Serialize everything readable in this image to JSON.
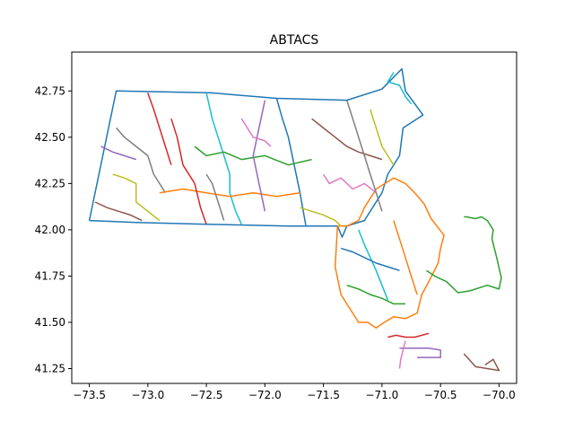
{
  "chart_data": {
    "type": "line",
    "title": "ABTACS",
    "xlabel": "",
    "ylabel": "",
    "xlim": [
      -73.65,
      -69.85
    ],
    "ylim": [
      41.17,
      42.96
    ],
    "grid": false,
    "legend": "none",
    "xticks": [
      -73.5,
      -73.0,
      -72.5,
      -72.0,
      -71.5,
      -71.0,
      -70.5,
      -70.0
    ],
    "xtick_labels": [
      "−73.5",
      "−73.0",
      "−72.5",
      "−72.0",
      "−71.5",
      "−71.0",
      "−70.5",
      "−70.0"
    ],
    "yticks": [
      41.25,
      41.5,
      41.75,
      42.0,
      42.25,
      42.5,
      42.75
    ],
    "ytick_labels": [
      "41.25",
      "41.50",
      "41.75",
      "42.00",
      "42.25",
      "42.50",
      "42.75"
    ],
    "colors": [
      "#1f77b4",
      "#ff7f0e",
      "#2ca02c",
      "#d62728",
      "#9467bd",
      "#8c564b",
      "#e377c2",
      "#7f7f7f",
      "#bcbd22",
      "#17becf"
    ],
    "series": [
      {
        "x": [
          -73.5,
          -73.27,
          -72.46,
          -71.9,
          -71.3,
          -71.0,
          -70.83,
          -70.8,
          -70.65,
          -70.82,
          -70.85,
          -70.95,
          -71.0,
          -71.15,
          -71.3,
          -71.34,
          -71.38,
          -71.8,
          -72.5,
          -73.1,
          -73.5,
          -73.5
        ],
        "y": [
          42.05,
          42.75,
          42.74,
          42.71,
          42.7,
          42.76,
          42.87,
          42.75,
          42.62,
          42.55,
          42.4,
          42.3,
          42.2,
          42.05,
          42.02,
          41.96,
          42.02,
          42.02,
          42.03,
          42.04,
          42.05,
          42.05
        ]
      },
      {
        "x": [
          -71.38,
          -71.4,
          -71.35,
          -71.2,
          -71.12,
          -71.05,
          -70.98,
          -70.9,
          -70.8,
          -70.7,
          -70.66,
          -70.6,
          -70.52,
          -70.5,
          -70.47,
          -70.58,
          -70.64,
          -70.72,
          -70.8,
          -70.9,
          -71.05,
          -71.15,
          -71.2,
          -71.3,
          -71.38
        ],
        "y": [
          42.02,
          41.8,
          41.65,
          41.5,
          41.5,
          41.47,
          41.5,
          41.53,
          41.52,
          41.55,
          41.65,
          41.72,
          41.82,
          41.9,
          41.97,
          42.06,
          42.14,
          42.2,
          42.25,
          42.28,
          42.22,
          42.12,
          42.05,
          42.02,
          42.02
        ]
      },
      {
        "x": [
          -70.62,
          -70.55,
          -70.45,
          -70.35,
          -70.25,
          -70.1,
          -70.0,
          -69.98,
          -70.02,
          -70.06,
          -70.05,
          -70.1,
          -70.15,
          -70.2,
          -70.28,
          -70.3
        ],
        "y": [
          41.78,
          41.75,
          41.72,
          41.66,
          41.67,
          41.7,
          41.68,
          41.74,
          41.85,
          41.95,
          42.0,
          42.05,
          42.07,
          42.06,
          42.07,
          42.07
        ]
      },
      {
        "x": [
          -70.95,
          -70.88,
          -70.8,
          -70.72,
          -70.6
        ],
        "y": [
          41.42,
          41.43,
          41.42,
          41.42,
          41.44
        ]
      },
      {
        "x": [
          -70.85,
          -70.6,
          -70.5,
          -70.5,
          -70.7
        ],
        "y": [
          41.36,
          41.36,
          41.35,
          41.31,
          41.31
        ]
      },
      {
        "x": [
          -70.3,
          -70.2,
          -70.1,
          -70.0,
          -70.05,
          -70.12
        ],
        "y": [
          41.33,
          41.26,
          41.25,
          41.24,
          41.3,
          41.27
        ]
      },
      {
        "x": [
          -70.85,
          -70.84,
          -70.82,
          -70.8
        ],
        "y": [
          41.25,
          41.3,
          41.35,
          41.4
        ]
      },
      {
        "x": [
          -73.27,
          -73.2,
          -73.1,
          -73.0,
          -72.95,
          -72.9,
          -72.85
        ],
        "y": [
          42.55,
          42.5,
          42.45,
          42.4,
          42.3,
          42.25,
          42.2
        ]
      },
      {
        "x": [
          -73.3,
          -73.2,
          -73.1,
          -73.1,
          -73.0,
          -72.9
        ],
        "y": [
          42.3,
          42.28,
          42.25,
          42.15,
          42.1,
          42.05
        ]
      },
      {
        "x": [
          -72.5,
          -72.45,
          -72.4,
          -72.35,
          -72.3,
          -72.3,
          -72.25,
          -72.2
        ],
        "y": [
          42.74,
          42.6,
          42.5,
          42.4,
          42.3,
          42.2,
          42.1,
          42.03
        ]
      },
      {
        "x": [
          -71.9,
          -71.85,
          -71.8,
          -71.75,
          -71.7,
          -71.65
        ],
        "y": [
          42.71,
          42.6,
          42.5,
          42.35,
          42.2,
          42.02
        ]
      },
      {
        "x": [
          -72.9,
          -72.7,
          -72.5,
          -72.3,
          -72.1,
          -71.9,
          -71.7
        ],
        "y": [
          42.2,
          42.22,
          42.2,
          42.18,
          42.2,
          42.18,
          42.2
        ]
      },
      {
        "x": [
          -72.6,
          -72.5,
          -72.35,
          -72.2,
          -72.0,
          -71.8,
          -71.6
        ],
        "y": [
          42.45,
          42.4,
          42.42,
          42.38,
          42.4,
          42.35,
          42.38
        ]
      },
      {
        "x": [
          -72.8,
          -72.75,
          -72.7,
          -72.6,
          -72.55,
          -72.5
        ],
        "y": [
          42.6,
          42.5,
          42.35,
          42.25,
          42.12,
          42.03
        ]
      },
      {
        "x": [
          -72.0,
          -72.05,
          -72.1,
          -72.05,
          -72.0
        ],
        "y": [
          42.7,
          42.55,
          42.4,
          42.25,
          42.1
        ]
      },
      {
        "x": [
          -71.6,
          -71.5,
          -71.4,
          -71.3,
          -71.2,
          -71.1,
          -71.0
        ],
        "y": [
          42.6,
          42.55,
          42.5,
          42.45,
          42.42,
          42.4,
          42.38
        ]
      },
      {
        "x": [
          -71.5,
          -71.45,
          -71.35,
          -71.25,
          -71.15,
          -71.05
        ],
        "y": [
          42.3,
          42.25,
          42.28,
          42.22,
          42.25,
          42.2
        ]
      },
      {
        "x": [
          -71.3,
          -71.25,
          -71.2,
          -71.15,
          -71.1,
          -71.05,
          -71.0
        ],
        "y": [
          42.7,
          42.6,
          42.5,
          42.4,
          42.3,
          42.2,
          42.1
        ]
      },
      {
        "x": [
          -71.1,
          -71.05,
          -71.0,
          -70.95,
          -70.9
        ],
        "y": [
          42.65,
          42.55,
          42.45,
          42.4,
          42.35
        ]
      },
      {
        "x": [
          -71.2,
          -71.15,
          -71.1,
          -71.05,
          -71.0,
          -70.95
        ],
        "y": [
          42.0,
          41.92,
          41.85,
          41.78,
          41.7,
          41.62
        ]
      },
      {
        "x": [
          -71.35,
          -71.25,
          -71.15,
          -71.05,
          -70.95,
          -70.85
        ],
        "y": [
          41.9,
          41.88,
          41.85,
          41.82,
          41.8,
          41.78
        ]
      },
      {
        "x": [
          -70.9,
          -70.85,
          -70.8,
          -70.75,
          -70.7
        ],
        "y": [
          42.05,
          41.95,
          41.85,
          41.75,
          41.65
        ]
      },
      {
        "x": [
          -71.3,
          -71.2,
          -71.1,
          -71.0,
          -70.9,
          -70.8
        ],
        "y": [
          41.7,
          41.68,
          41.65,
          41.63,
          41.6,
          41.6
        ]
      },
      {
        "x": [
          -73.0,
          -72.95,
          -72.9,
          -72.85,
          -72.8
        ],
        "y": [
          42.74,
          42.65,
          42.55,
          42.45,
          42.35
        ]
      },
      {
        "x": [
          -73.4,
          -73.3,
          -73.2,
          -73.1
        ],
        "y": [
          42.45,
          42.42,
          42.4,
          42.38
        ]
      },
      {
        "x": [
          -73.45,
          -73.35,
          -73.25,
          -73.15,
          -73.05
        ],
        "y": [
          42.15,
          42.12,
          42.1,
          42.08,
          42.05
        ]
      },
      {
        "x": [
          -72.2,
          -72.15,
          -72.1,
          -72.0,
          -71.95
        ],
        "y": [
          42.6,
          42.55,
          42.5,
          42.48,
          42.45
        ]
      },
      {
        "x": [
          -72.5,
          -72.45,
          -72.4,
          -72.35
        ],
        "y": [
          42.3,
          42.25,
          42.15,
          42.05
        ]
      },
      {
        "x": [
          -71.7,
          -71.6,
          -71.5,
          -71.4,
          -71.35
        ],
        "y": [
          42.12,
          42.1,
          42.08,
          42.05,
          42.02
        ]
      },
      {
        "x": [
          -70.9,
          -70.95,
          -70.85,
          -70.8,
          -70.75
        ],
        "y": [
          42.85,
          42.8,
          42.78,
          42.72,
          42.68
        ]
      }
    ]
  }
}
